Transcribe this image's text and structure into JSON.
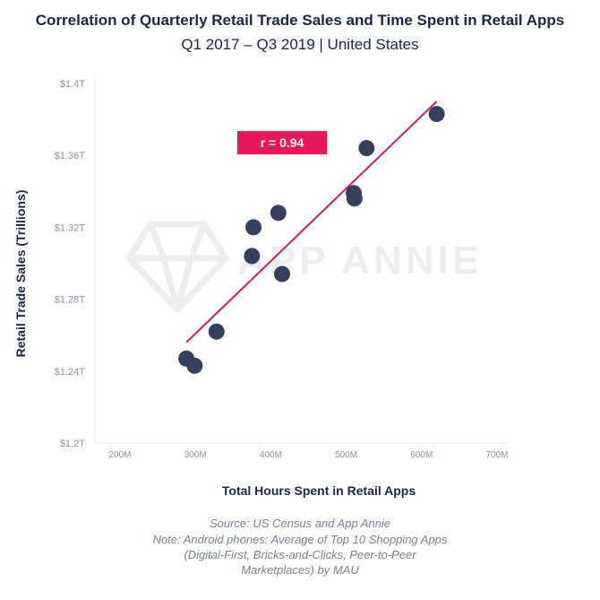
{
  "title": "Correlation of Quarterly Retail Trade Sales and Time Spent in Retail Apps",
  "subtitle": "Q1 2017 – Q3 2019 | United States",
  "source": "Source: US Census and App Annie",
  "note_lines": [
    "Note: Android phones: Average of Top 10 Shopping Apps",
    "(Digital-First, Bricks-and-Clicks, Peer-to-Peer",
    "Marketplaces) by MAU"
  ],
  "watermark": "APP ANNIE",
  "colors": {
    "point": "#34405e",
    "trendline": "#d81b60",
    "annotation_bg": "#e8175d",
    "title": "#1c2748",
    "axis_text": "#8b93a3"
  },
  "chart_data": {
    "type": "scatter",
    "xlabel": "Total Hours Spent in Retail Apps",
    "ylabel": "Retail Trade Sales (Trillions)",
    "xlim": [
      200,
      700
    ],
    "ylim": [
      1.2,
      1.4
    ],
    "x_ticks": [
      200,
      300,
      400,
      500,
      600,
      700
    ],
    "x_tick_labels": [
      "200M",
      "300M",
      "400M",
      "500M",
      "600M",
      "700M"
    ],
    "y_ticks": [
      1.2,
      1.24,
      1.28,
      1.32,
      1.36,
      1.4
    ],
    "y_tick_labels": [
      "$1.2T",
      "$1.24T",
      "$1.28T",
      "$1.32T",
      "$1.36T",
      "$1.4T"
    ],
    "grid": false,
    "points": [
      {
        "x": 288,
        "y": 1.247
      },
      {
        "x": 299,
        "y": 1.243
      },
      {
        "x": 328,
        "y": 1.262
      },
      {
        "x": 375,
        "y": 1.304
      },
      {
        "x": 377,
        "y": 1.32
      },
      {
        "x": 410,
        "y": 1.328
      },
      {
        "x": 415,
        "y": 1.294
      },
      {
        "x": 510,
        "y": 1.339
      },
      {
        "x": 511,
        "y": 1.336
      },
      {
        "x": 527,
        "y": 1.364
      },
      {
        "x": 620,
        "y": 1.383
      }
    ],
    "trendline": {
      "x": [
        288,
        620
      ],
      "y": [
        1.256,
        1.39
      ]
    },
    "annotation": {
      "text": "r = 0.94",
      "x": 415,
      "y": 1.367
    }
  }
}
